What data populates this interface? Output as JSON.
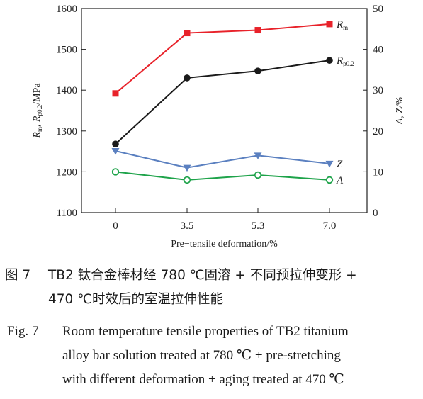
{
  "chart_data": {
    "type": "line",
    "categories": [
      "0",
      "3.5",
      "5.3",
      "7.0"
    ],
    "xlabel": "Pre−tensile deformation/%",
    "ylabel_left": "R_m, R_p0.2/MPa",
    "ylabel_left_parts": {
      "r1": "R",
      "s1": "m",
      "comma": ", ",
      "r2": "R",
      "s2": "p0.2",
      "unit": "/MPa"
    },
    "ylabel_right": "A, Z/%",
    "ylim_left": [
      1100,
      1600
    ],
    "ylim_right": [
      0,
      50
    ],
    "yticks_left": [
      "1100",
      "1200",
      "1300",
      "1400",
      "1500",
      "1600"
    ],
    "yticks_right": [
      "0",
      "10",
      "20",
      "30",
      "40",
      "50"
    ],
    "grid": false,
    "series": [
      {
        "name": "R_m",
        "label_main": "R",
        "label_sub": "m",
        "axis": "left",
        "color": "#e8222a",
        "marker": "square",
        "values": [
          1392,
          1540,
          1547,
          1562
        ]
      },
      {
        "name": "R_p0.2",
        "label_main": "R",
        "label_sub": "p0.2",
        "axis": "left",
        "color": "#1a1a1a",
        "marker": "circle",
        "values": [
          1268,
          1430,
          1447,
          1473
        ]
      },
      {
        "name": "Z",
        "label_main": "Z",
        "label_sub": "",
        "axis": "right",
        "color": "#5b80c0",
        "marker": "triangle-down",
        "values": [
          15.1,
          11.0,
          14.0,
          12.0
        ]
      },
      {
        "name": "A",
        "label_main": "A",
        "label_sub": "",
        "axis": "right",
        "color": "#1ea34a",
        "marker": "circle-open",
        "values": [
          10.0,
          8.0,
          9.2,
          8.0
        ]
      }
    ]
  },
  "caption": {
    "cn_label": "图 7",
    "cn_line1": "TB2 钛合金棒材经 780 ℃固溶 + 不同预拉伸变形 +",
    "cn_line2": "470 ℃时效后的室温拉伸性能",
    "en_label": "Fig. 7",
    "en_line1": "Room temperature tensile properties of TB2 titanium",
    "en_line2": "alloy bar solution treated at 780 ℃ + pre-stretching",
    "en_line3": "with different deformation + aging treated at 470 ℃"
  }
}
